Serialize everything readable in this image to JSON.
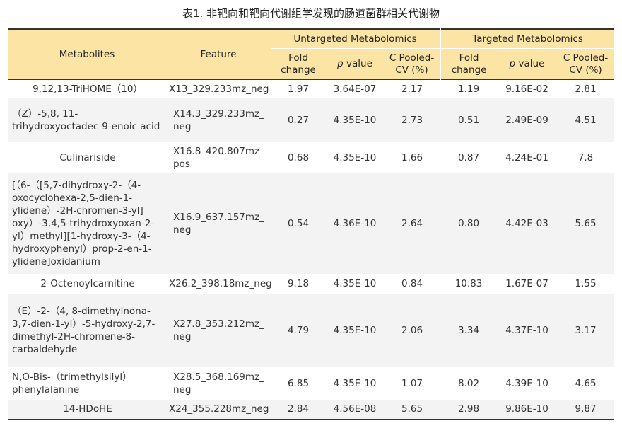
{
  "caption": "表1. 非靶向和靶向代谢组学发现的肠道菌群相关代谢物",
  "headers": {
    "metabolites": "Metabolites",
    "feature": "Feature",
    "untargeted": "Untargeted Metabolomics",
    "targeted": "Targeted Metabolomics",
    "fold_change": "Fold change",
    "p_value_p": "p",
    "p_value_rest": " value",
    "cv": "C Pooled-CV (%)"
  },
  "rows": [
    {
      "metabolite": "9,12,13-TriHOME（10）",
      "feature": "X13_329.233mz_neg",
      "u_fc": "1.97",
      "u_p": "3.64E-07",
      "u_cv": "2.17",
      "t_fc": "1.19",
      "t_p": "9.16E-02",
      "t_cv": "2.81"
    },
    {
      "metabolite": "（Z）-5,8, 11-trihydroxyoctadec-9-enoic acid",
      "feature": "X14.3_329.233mz_ neg",
      "u_fc": "0.27",
      "u_p": "4.35E-10",
      "u_cv": "2.73",
      "t_fc": "0.51",
      "t_p": "2.49E-09",
      "t_cv": "4.51"
    },
    {
      "metabolite": "Culinariside",
      "feature": "X16.8_420.807mz_ pos",
      "u_fc": "0.68",
      "u_p": "4.35E-10",
      "u_cv": "1.66",
      "t_fc": "0.87",
      "t_p": "4.24E-01",
      "t_cv": "7.8"
    },
    {
      "metabolite": "[（6-（[5,7-dihydroxy-2-（4-oxocyclohexa-2,5-dien-1-ylidene）-2H-chromen-3-yl] oxy）-3,4,5-trihydroxyoxan-2-yl）methyl][1-hydroxy-3-（4-hydroxyphenyl）prop-2-en-1-ylidene]oxidanium",
      "feature": "X16.9_637.157mz_ neg",
      "u_fc": "0.54",
      "u_p": "4.36E-10",
      "u_cv": "2.64",
      "t_fc": "0.80",
      "t_p": "4.42E-03",
      "t_cv": "5.65"
    },
    {
      "metabolite": "2-Octenoylcarnitine",
      "feature": "X26.2_398.18mz_neg",
      "u_fc": "9.18",
      "u_p": "4.35E-10",
      "u_cv": "0.84",
      "t_fc": "10.83",
      "t_p": "1.67E-07",
      "t_cv": "1.55"
    },
    {
      "metabolite": "（E）-2-（4, 8-dimethylnona-3,7-dien-1-yl）-5-hydroxy-2,7-dimethyl-2H-chromene-8-carbaldehyde",
      "feature": "X27.8_353.212mz_ neg",
      "u_fc": "4.79",
      "u_p": "4.35E-10",
      "u_cv": "2.06",
      "t_fc": "3.34",
      "t_p": "4.37E-10",
      "t_cv": "3.17"
    },
    {
      "metabolite": "N,O-Bis-（trimethylsilyl） phenylalanine",
      "feature": "X28.5_368.169mz_ neg",
      "u_fc": "6.85",
      "u_p": "4.35E-10",
      "u_cv": "1.07",
      "t_fc": "8.02",
      "t_p": "4.39E-10",
      "t_cv": "4.65"
    },
    {
      "metabolite": "14-HDoHE",
      "feature": "X24_355.228mz_neg",
      "u_fc": "2.84",
      "u_p": "4.56E-08",
      "u_cv": "5.65",
      "t_fc": "2.98",
      "t_p": "9.86E-10",
      "t_cv": "9.87"
    }
  ]
}
